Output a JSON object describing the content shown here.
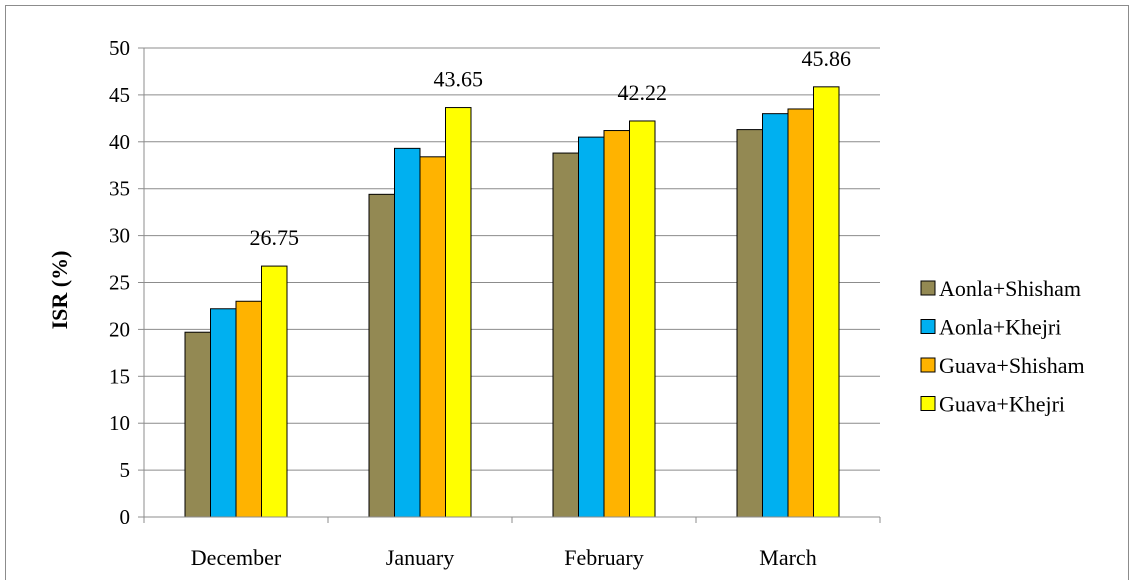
{
  "chart_data": {
    "type": "bar",
    "title": "",
    "xlabel": "",
    "ylabel": "ISR (%)",
    "ylim": [
      0,
      50
    ],
    "yticks": [
      0,
      5,
      10,
      15,
      20,
      25,
      30,
      35,
      40,
      45,
      50
    ],
    "grid": true,
    "legend_position": "right",
    "categories": [
      "December",
      "January",
      "February",
      "March"
    ],
    "series": [
      {
        "name": "Aonla+Shisham",
        "color": "#938953",
        "values": [
          19.7,
          34.4,
          38.8,
          41.3
        ]
      },
      {
        "name": "Aonla+Khejri",
        "color": "#00b0f0",
        "values": [
          22.2,
          39.3,
          40.5,
          43.0
        ]
      },
      {
        "name": "Guava+Shisham",
        "color": "#ffb300",
        "values": [
          23.0,
          38.4,
          41.2,
          43.5
        ]
      },
      {
        "name": "Guava+Khejri",
        "color": "#ffff00",
        "values": [
          26.75,
          43.65,
          42.22,
          45.86
        ]
      }
    ],
    "data_labels": [
      {
        "series": "Guava+Khejri",
        "category": "December",
        "text": "26.75"
      },
      {
        "series": "Guava+Khejri",
        "category": "January",
        "text": "43.65"
      },
      {
        "series": "Guava+Khejri",
        "category": "February",
        "text": "42.22"
      },
      {
        "series": "Guava+Khejri",
        "category": "March",
        "text": "45.86"
      }
    ]
  }
}
